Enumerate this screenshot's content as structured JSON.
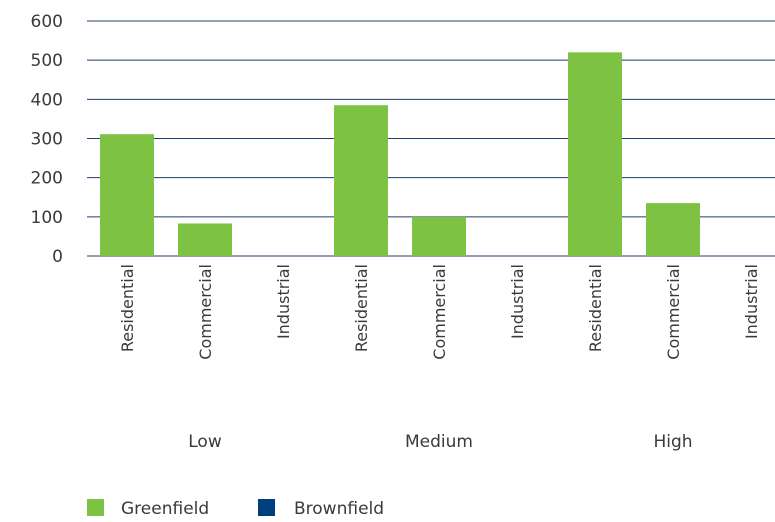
{
  "chart_data": {
    "type": "bar",
    "title": "",
    "xlabel": "",
    "ylabel": "",
    "ylim": [
      0,
      600
    ],
    "yticks": [
      0,
      100,
      200,
      300,
      400,
      500,
      600
    ],
    "grid": true,
    "legend_position": "bottom-left",
    "groups": [
      {
        "label": "Low",
        "categories": [
          "Residential",
          "Commercial",
          "Industrial"
        ]
      },
      {
        "label": "Medium",
        "categories": [
          "Residential",
          "Commercial",
          "Industrial"
        ]
      },
      {
        "label": "High",
        "categories": [
          "Residential",
          "Commercial",
          "Industrial"
        ]
      }
    ],
    "series": [
      {
        "name": "Greenfield",
        "color": "#7dc242",
        "values": [
          311,
          83,
          0,
          385,
          100,
          0,
          520,
          135,
          0
        ]
      },
      {
        "name": "Brownfield",
        "color": "#003f7d",
        "values": [
          0,
          0,
          0,
          0,
          0,
          0,
          0,
          0,
          0
        ]
      }
    ],
    "gridline_color": "#1f3f6e"
  }
}
